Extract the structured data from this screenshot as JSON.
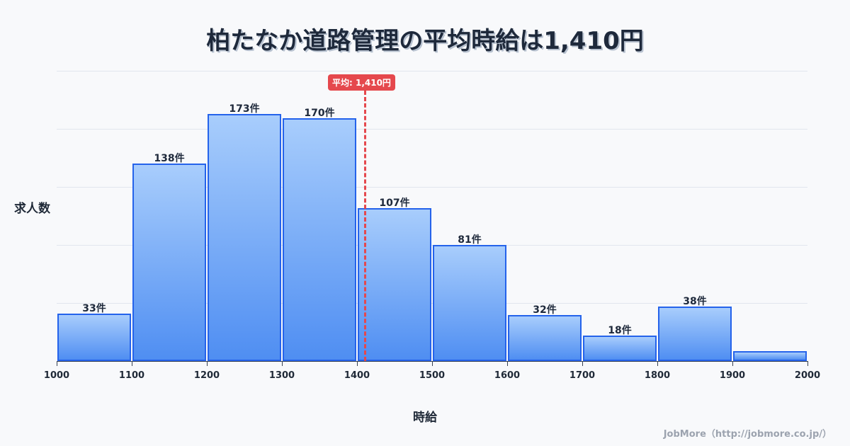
{
  "title": "柏たなか道路管理の平均時給は1,410円",
  "ylabel": "求人数",
  "xlabel": "時給",
  "mean_badge": "平均: 1,410円",
  "credit": "JobMore（http://jobmore.co.jp/）",
  "colors": {
    "bar_border": "#2563eb",
    "bar_top": "#a8cdfc",
    "bar_bottom": "#4f8ef2",
    "mean_line": "#e5484d",
    "title": "#1e293b"
  },
  "chart_data": {
    "type": "bar",
    "title": "柏たなか道路管理の平均時給は1,410円",
    "xlabel": "時給",
    "ylabel": "求人数",
    "categories": [
      "1000-1100",
      "1100-1200",
      "1200-1300",
      "1300-1400",
      "1400-1500",
      "1500-1600",
      "1600-1700",
      "1700-1800",
      "1800-1900",
      "1900-2000"
    ],
    "values": [
      33,
      138,
      173,
      170,
      107,
      81,
      32,
      18,
      38,
      7
    ],
    "labels": [
      "33件",
      "138件",
      "173件",
      "170件",
      "107件",
      "81件",
      "32件",
      "18件",
      "38件",
      ""
    ],
    "x_ticks": [
      "1000",
      "1100",
      "1200",
      "1300",
      "1400",
      "1500",
      "1600",
      "1700",
      "1800",
      "1900",
      "2000"
    ],
    "xlim": [
      1000,
      2000
    ],
    "ylim": [
      0,
      203
    ],
    "grid": true,
    "annotations": [
      {
        "type": "vline",
        "x": 1410,
        "label": "平均: 1,410円",
        "color": "#e5484d",
        "style": "dashed"
      }
    ]
  }
}
